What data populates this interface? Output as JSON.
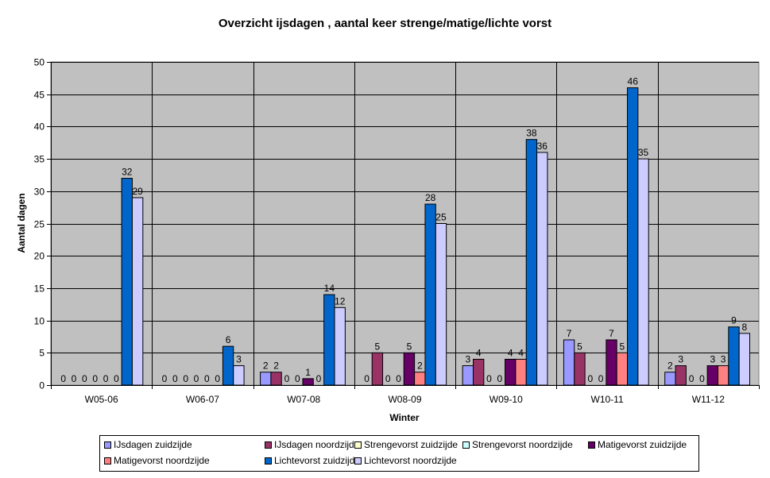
{
  "chart_data": {
    "type": "bar",
    "title": "Overzicht ijsdagen , aantal keer strenge/matige/lichte vorst",
    "xlabel": "Winter",
    "ylabel": "Aantal dagen",
    "ylim": [
      0,
      50
    ],
    "yticks": [
      0,
      5,
      10,
      15,
      20,
      25,
      30,
      35,
      40,
      45,
      50
    ],
    "grid": true,
    "legend_position": "bottom",
    "categories": [
      "W05-06",
      "W06-07",
      "W07-08",
      "W08-09",
      "W09-10",
      "W10-11",
      "W11-12"
    ],
    "series": [
      {
        "name": "IJsdagen zuidzijde",
        "color": "#9999FF",
        "values": [
          0,
          0,
          2,
          0,
          3,
          7,
          2
        ]
      },
      {
        "name": "IJsdagen noordzijde",
        "color": "#993366",
        "values": [
          0,
          0,
          2,
          5,
          4,
          5,
          3
        ]
      },
      {
        "name": "Strengevorst zuidzijde",
        "color": "#FFFFCC",
        "values": [
          0,
          0,
          0,
          0,
          0,
          0,
          0
        ]
      },
      {
        "name": "Strengevorst noordzijde",
        "color": "#CCFFFF",
        "values": [
          0,
          0,
          0,
          0,
          0,
          0,
          0
        ]
      },
      {
        "name": "Matigevorst zuidzijde",
        "color": "#660066",
        "values": [
          0,
          0,
          1,
          5,
          4,
          7,
          3
        ]
      },
      {
        "name": "Matigevorst noordzijde",
        "color": "#FF8080",
        "values": [
          0,
          0,
          0,
          2,
          4,
          5,
          3
        ]
      },
      {
        "name": "Lichtevorst zuidzijde",
        "color": "#0066CC",
        "values": [
          32,
          6,
          14,
          28,
          38,
          46,
          9
        ]
      },
      {
        "name": "Lichtevorst noordzijde",
        "color": "#CCCCFF",
        "values": [
          29,
          3,
          12,
          25,
          36,
          35,
          8
        ]
      }
    ],
    "plot_background": "#C0C0C0"
  }
}
